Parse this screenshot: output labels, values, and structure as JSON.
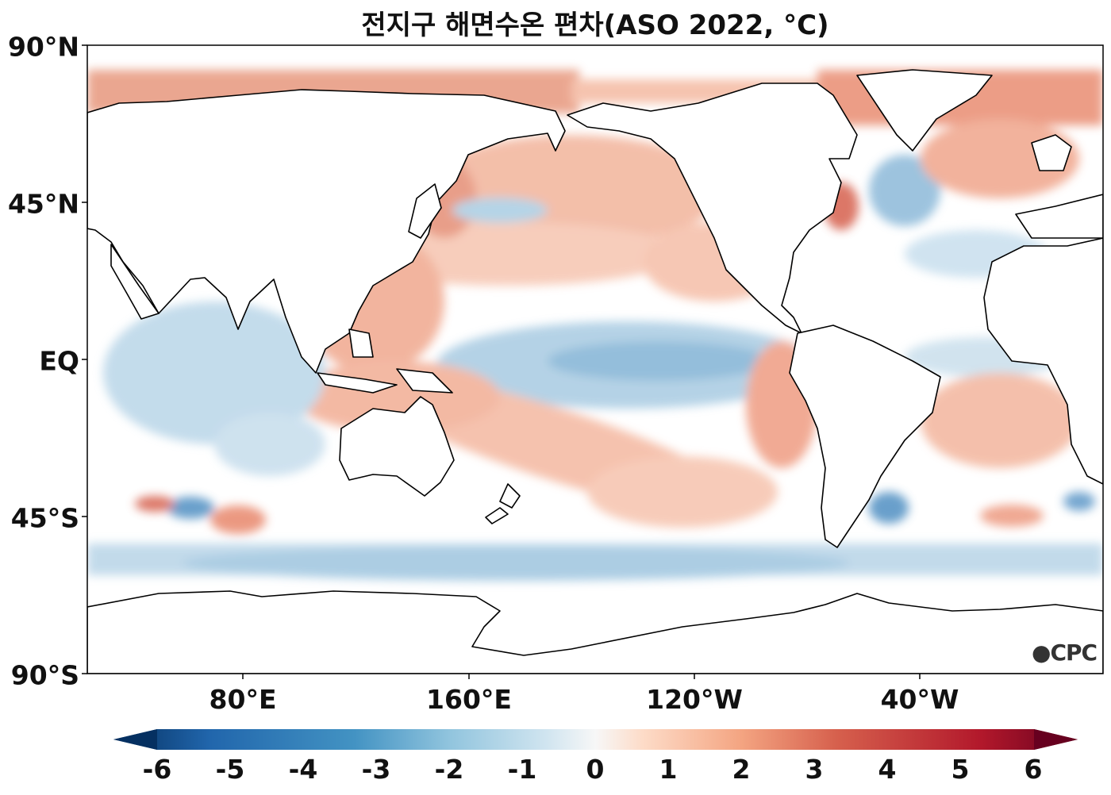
{
  "title": "전지구 해면수온 편차(ASO 2022, °C)",
  "y_axis_labels": [
    "90°N",
    "45°N",
    "EQ",
    "45°S",
    "90°S"
  ],
  "x_axis_labels": [
    "80°E",
    "160°E",
    "120°W",
    "40°W"
  ],
  "colorbar": {
    "ticks": [
      "-6",
      "-5",
      "-4",
      "-3",
      "-2",
      "-1",
      "0",
      "1",
      "2",
      "3",
      "4",
      "5",
      "6"
    ],
    "min": -6,
    "max": 6,
    "colors": [
      "#053061",
      "#2166ac",
      "#4393c3",
      "#92c5de",
      "#d1e5f0",
      "#f7f7f7",
      "#fddbc7",
      "#f4a582",
      "#d6604d",
      "#b2182b",
      "#67001f"
    ]
  },
  "logo": "CPC",
  "colors": {
    "land": "#ffffff",
    "coastline": "#000000",
    "neutral_ocean": "#ffffff",
    "anomaly_warm": "#e8866b",
    "anomaly_cool": "#7fb3d5"
  }
}
